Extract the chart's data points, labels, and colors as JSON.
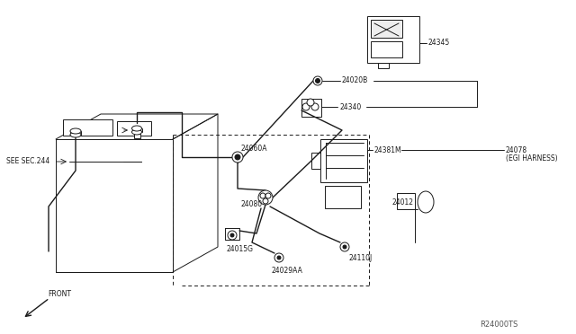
{
  "background_color": "#ffffff",
  "fig_width": 6.4,
  "fig_height": 3.72,
  "dpi": 100,
  "labels": {
    "see_sec": "SEE SEC.244",
    "front": "FRONT",
    "part_24345": "24345",
    "part_24020B": "24020B",
    "part_24340": "24340",
    "part_24381M": "24381M",
    "part_24078": "24078",
    "part_egi": "(EGI HARNESS)",
    "part_24012": "24012",
    "part_24060A": "24060A",
    "part_24080": "24080",
    "part_24110J": "24110J",
    "part_24015G": "24015G",
    "part_24029AA": "24029AA",
    "watermark": "R24000TS"
  },
  "line_color": "#1a1a1a",
  "text_color": "#1a1a1a",
  "line_width": 0.7
}
